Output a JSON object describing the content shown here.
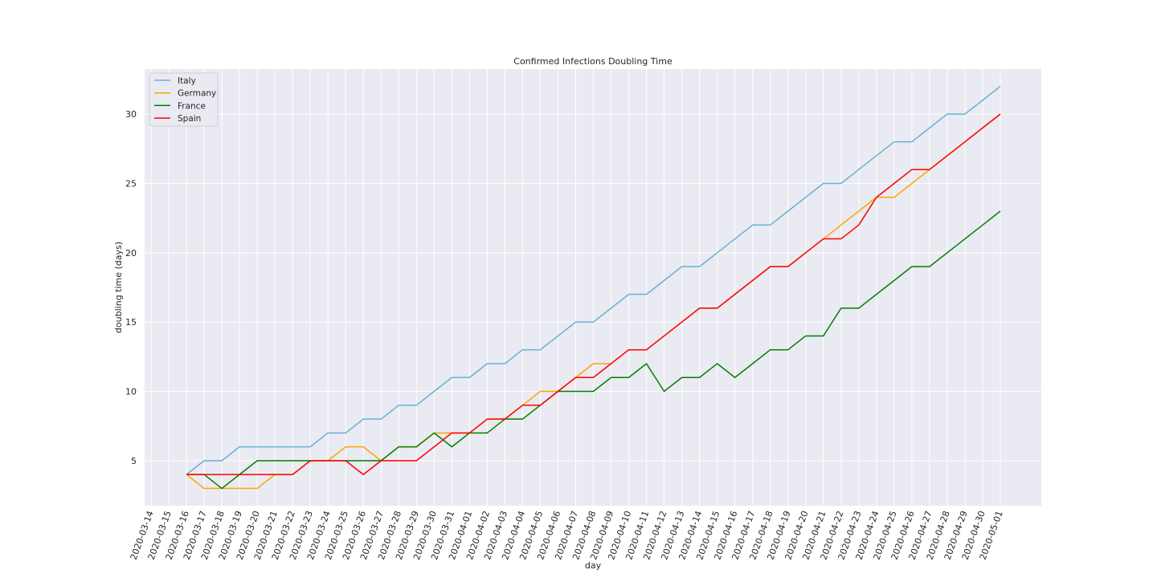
{
  "chart_data": {
    "type": "line",
    "title": "Confirmed Infections Doubling Time",
    "xlabel": "day",
    "ylabel": "doubling time (days)",
    "ylim": [
      1.75,
      33.25
    ],
    "yticks": [
      5,
      10,
      15,
      20,
      25,
      30
    ],
    "grid": true,
    "legend_position": "top-left",
    "categories": [
      "2020-03-14",
      "2020-03-15",
      "2020-03-16",
      "2020-03-17",
      "2020-03-18",
      "2020-03-19",
      "2020-03-20",
      "2020-03-21",
      "2020-03-22",
      "2020-03-23",
      "2020-03-24",
      "2020-03-25",
      "2020-03-26",
      "2020-03-27",
      "2020-03-28",
      "2020-03-29",
      "2020-03-30",
      "2020-03-31",
      "2020-04-01",
      "2020-04-02",
      "2020-04-03",
      "2020-04-04",
      "2020-04-05",
      "2020-04-06",
      "2020-04-07",
      "2020-04-08",
      "2020-04-09",
      "2020-04-10",
      "2020-04-11",
      "2020-04-12",
      "2020-04-13",
      "2020-04-14",
      "2020-04-15",
      "2020-04-16",
      "2020-04-17",
      "2020-04-18",
      "2020-04-19",
      "2020-04-20",
      "2020-04-21",
      "2020-04-22",
      "2020-04-23",
      "2020-04-24",
      "2020-04-25",
      "2020-04-26",
      "2020-04-27",
      "2020-04-28",
      "2020-04-29",
      "2020-04-30",
      "2020-05-01"
    ],
    "series": [
      {
        "name": "Italy",
        "color": "#6ab0d1",
        "values": [
          null,
          null,
          4,
          5,
          5,
          6,
          6,
          6,
          6,
          6,
          7,
          7,
          8,
          8,
          9,
          9,
          10,
          11,
          11,
          12,
          12,
          13,
          13,
          14,
          15,
          15,
          16,
          17,
          17,
          18,
          19,
          19,
          20,
          21,
          22,
          22,
          23,
          24,
          25,
          25,
          26,
          27,
          28,
          28,
          29,
          30,
          30,
          31,
          32
        ]
      },
      {
        "name": "Germany",
        "color": "#ffa500",
        "values": [
          null,
          null,
          4,
          3,
          3,
          3,
          3,
          4,
          4,
          5,
          5,
          6,
          6,
          5,
          6,
          6,
          7,
          7,
          7,
          8,
          8,
          9,
          10,
          10,
          11,
          12,
          12,
          13,
          13,
          14,
          15,
          16,
          16,
          17,
          18,
          19,
          19,
          20,
          21,
          22,
          23,
          24,
          24,
          25,
          26,
          27,
          28,
          29,
          30
        ]
      },
      {
        "name": "France",
        "color": "#008000",
        "values": [
          null,
          null,
          4,
          4,
          3,
          4,
          5,
          5,
          5,
          5,
          5,
          5,
          5,
          5,
          6,
          6,
          7,
          6,
          7,
          7,
          8,
          8,
          9,
          10,
          10,
          10,
          11,
          11,
          12,
          10,
          11,
          11,
          12,
          11,
          12,
          13,
          13,
          14,
          14,
          16,
          16,
          17,
          18,
          19,
          19,
          20,
          21,
          22,
          23
        ]
      },
      {
        "name": "Spain",
        "color": "#ff0000",
        "values": [
          null,
          null,
          4,
          4,
          4,
          4,
          4,
          4,
          4,
          5,
          5,
          5,
          4,
          5,
          5,
          5,
          6,
          7,
          7,
          8,
          8,
          9,
          9,
          10,
          11,
          11,
          12,
          13,
          13,
          14,
          15,
          16,
          16,
          17,
          18,
          19,
          19,
          20,
          21,
          21,
          22,
          24,
          25,
          26,
          26,
          27,
          28,
          29,
          30
        ]
      }
    ]
  }
}
